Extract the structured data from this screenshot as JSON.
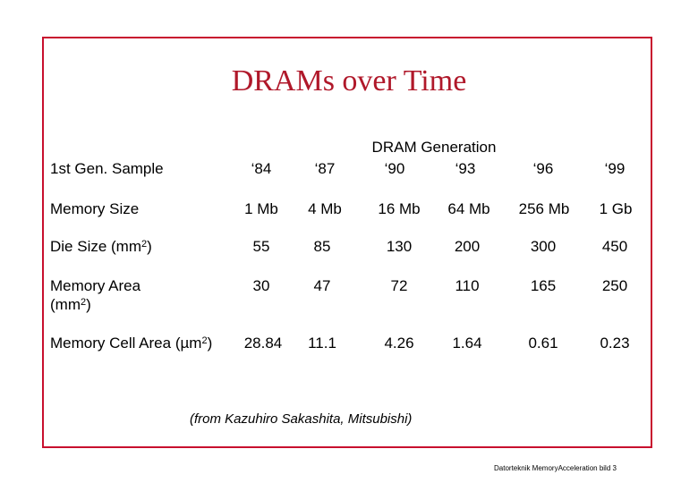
{
  "title": "DRAMs over Time",
  "group_header": "DRAM Generation",
  "row_labels": {
    "first_sample": "1st Gen. Sample",
    "memory_size": "Memory Size",
    "die_size": "Die Size (mm",
    "die_size_close": ")",
    "memory_area_line1": "Memory Area",
    "memory_area_line2": "(mm",
    "memory_area_close": ")",
    "cell_area": "Memory Cell Area (µm",
    "cell_area_close": ")",
    "sup2": "2"
  },
  "years": [
    "‘84",
    "‘87",
    "‘90",
    "‘93",
    "‘96",
    "‘99"
  ],
  "memory_size": [
    "1 Mb",
    "4 Mb",
    "16 Mb",
    "64 Mb",
    "256 Mb",
    "1 Gb"
  ],
  "die_size": [
    "55",
    "85",
    "130",
    "200",
    "300",
    "450"
  ],
  "memory_area": [
    "30",
    "47",
    "72",
    "110",
    "165",
    "250"
  ],
  "cell_area": [
    "28.84",
    "11.1",
    "4.26",
    "1.64",
    "0.61",
    "0.23"
  ],
  "credit": "(from Kazuhiro Sakashita, Mitsubishi)",
  "footer": "Datorteknik MemoryAcceleration bild 3"
}
